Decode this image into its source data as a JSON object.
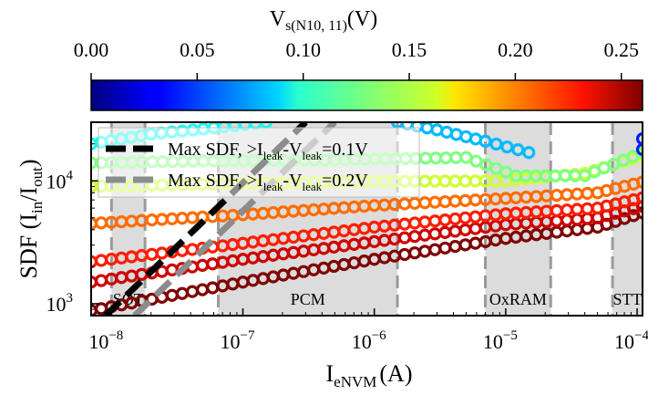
{
  "chart_data": {
    "type": "scatter",
    "xlabel": "I",
    "xlabel_sub": "eNVM",
    "xlabel_unit": "(A)",
    "ylabel": "SDF (I",
    "ylabel_sub1": "in",
    "ylabel_mid": "/I",
    "ylabel_sub2": "out",
    "ylabel_end": ")",
    "x_scale": "log",
    "y_scale": "log",
    "xlim": [
      7e-09,
      0.00011
    ],
    "ylim": [
      800,
      30000
    ],
    "x_ticks": [
      {
        "value": 1e-08,
        "label": "10",
        "exp": "−8"
      },
      {
        "value": 1e-07,
        "label": "10",
        "exp": "−7"
      },
      {
        "value": 1e-06,
        "label": "10",
        "exp": "−6"
      },
      {
        "value": 1e-05,
        "label": "10",
        "exp": "−5"
      },
      {
        "value": 0.0001,
        "label": "10",
        "exp": "−4"
      }
    ],
    "y_ticks": [
      {
        "value": 1000,
        "label": "10",
        "exp": "3"
      },
      {
        "value": 10000,
        "label": "10",
        "exp": "4"
      }
    ],
    "colorbar": {
      "title": "V",
      "title_sub": "s(N10, 11)",
      "title_unit": "(V)",
      "min": 0.0,
      "max": 0.26,
      "ticks": [
        "0.00",
        "0.05",
        "0.10",
        "0.15",
        "0.20",
        "0.25"
      ],
      "tick_values": [
        0.0,
        0.05,
        0.1,
        0.15,
        0.2,
        0.25
      ],
      "colormap": "jet"
    },
    "regions": [
      {
        "name": "SOT",
        "label": "SOT",
        "from": 1e-08,
        "to": 1.8e-08
      },
      {
        "name": "PCM",
        "label": "PCM",
        "from": 6.5e-08,
        "to": 1.5e-06
      },
      {
        "name": "OxRAM",
        "label": "OxRAM",
        "from": 7e-06,
        "to": 2.2e-05
      },
      {
        "name": "STT",
        "label": "STT",
        "from": 6.5e-05,
        "to": 0.00011
      }
    ],
    "lines": [
      {
        "name": "Max SDF, >I",
        "name_sub1": "leak",
        "name_mid": "-V",
        "name_sub2": "leak",
        "name_end": "=0.1V",
        "color": "#000000",
        "points": [
          [
            9e-09,
            800
          ],
          [
            3e-07,
            30000
          ]
        ]
      },
      {
        "name": "Max SDF, >I",
        "name_sub1": "leak",
        "name_mid": "-V",
        "name_sub2": "leak",
        "name_end": "=0.2V",
        "color": "#8c8c8c",
        "points": [
          [
            1.5e-08,
            800
          ],
          [
            5e-07,
            30000
          ]
        ]
      }
    ],
    "series": [
      {
        "v": 0.26,
        "points": [
          [
            7e-09,
            880
          ],
          [
            1e-07,
            1500
          ],
          [
            1e-06,
            2300
          ],
          [
            1e-05,
            3400
          ],
          [
            5e-05,
            4200
          ],
          [
            0.00011,
            5500
          ]
        ]
      },
      {
        "v": 0.24,
        "points": [
          [
            7e-09,
            1500
          ],
          [
            1e-07,
            2300
          ],
          [
            1e-06,
            3200
          ],
          [
            1e-05,
            4400
          ],
          [
            5e-05,
            5000
          ],
          [
            0.00011,
            6200
          ]
        ]
      },
      {
        "v": 0.22,
        "points": [
          [
            7e-09,
            2200
          ],
          [
            1e-07,
            3100
          ],
          [
            1e-06,
            4200
          ],
          [
            1e-05,
            5400
          ],
          [
            5e-05,
            6000
          ],
          [
            0.00011,
            7300
          ]
        ]
      },
      {
        "v": 0.2,
        "points": [
          [
            7e-09,
            4500
          ],
          [
            1e-07,
            5300
          ],
          [
            1e-06,
            6300
          ],
          [
            1e-05,
            7200
          ],
          [
            5e-05,
            8000
          ],
          [
            0.00011,
            9800
          ]
        ]
      },
      {
        "v": 0.15,
        "points": [
          [
            7e-09,
            9000
          ],
          [
            1e-07,
            9500
          ],
          [
            1e-06,
            9900
          ],
          [
            1e-05,
            10000
          ],
          [
            4e-05,
            11500
          ],
          [
            0.00011,
            16000
          ]
        ]
      },
      {
        "v": 0.13,
        "points": [
          [
            7e-09,
            14000
          ],
          [
            5e-08,
            14500
          ],
          [
            5e-07,
            14800
          ],
          [
            5e-06,
            15500
          ],
          [
            1.2e-05,
            11000
          ],
          [
            4e-05,
            11000
          ],
          [
            0.00011,
            17000
          ]
        ]
      },
      {
        "v": 0.1,
        "points": [
          [
            7e-09,
            20000
          ],
          [
            2e-08,
            24000
          ],
          [
            6e-08,
            27000
          ],
          [
            1.5e-07,
            30000
          ]
        ]
      },
      {
        "v": 0.08,
        "points": [
          [
            1.5e-06,
            30000
          ],
          [
            3e-06,
            26000
          ],
          [
            7e-06,
            21000
          ],
          [
            1.5e-05,
            17000
          ]
        ]
      },
      {
        "v": 0.04,
        "points": [
          [
            0.00011,
            18000
          ],
          [
            0.00011,
            22000
          ]
        ]
      }
    ]
  }
}
